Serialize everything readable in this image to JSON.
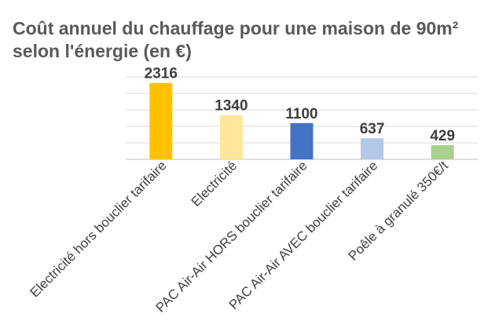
{
  "chart_data": {
    "type": "bar",
    "title": "Coût annuel du chauffage pour une maison de 90m² selon l'énergie (en €)",
    "xlabel": "",
    "ylabel": "",
    "categories": [
      "Electricité hors bouclier tarifaire",
      "Electricité",
      "PAC Air-Air HORS bouclier tarifaire",
      "PAC Air-Air AVEC bouclier tarifaire",
      "Poêle à granulé 350€/t"
    ],
    "values": [
      2316,
      1340,
      1100,
      637,
      429
    ],
    "data_labels": [
      "2316",
      "1340",
      "1100",
      "637",
      "429"
    ],
    "colors": [
      "#ffc000",
      "#ffe699",
      "#4472c4",
      "#b4c7e7",
      "#a9d18e"
    ],
    "ylim": [
      0,
      2500
    ],
    "grid": true,
    "legend": "none"
  }
}
